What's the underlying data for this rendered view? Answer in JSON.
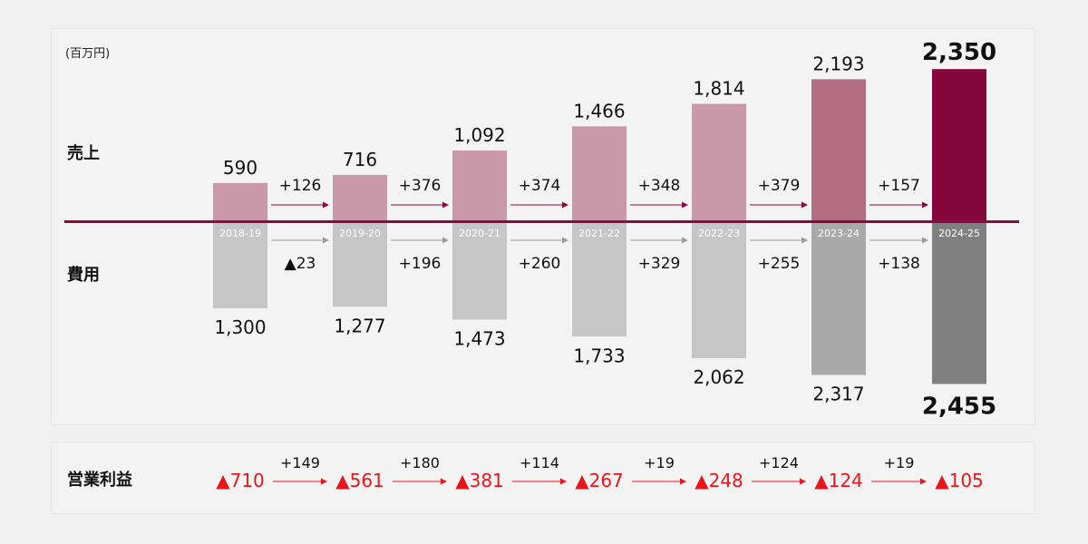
{
  "chart_data": {
    "type": "bar",
    "unit_label": "(百万円)",
    "categories": [
      "2018-19",
      "2019-20",
      "2020-21",
      "2021-22",
      "2022-23",
      "2023-24",
      "2024-25"
    ],
    "series": [
      {
        "name": "売上",
        "values": [
          590,
          716,
          1092,
          1466,
          1814,
          2193,
          2350
        ],
        "value_labels": [
          "590",
          "716",
          "1,092",
          "1,466",
          "1,814",
          "2,193",
          "2,350"
        ],
        "changes": [
          "+126",
          "+376",
          "+374",
          "+348",
          "+379",
          "+157"
        ],
        "colors": [
          "#c999aa",
          "#c999aa",
          "#c999aa",
          "#c999aa",
          "#c999aa",
          "#b06e82",
          "#83073a"
        ]
      },
      {
        "name": "費用",
        "values": [
          1300,
          1277,
          1473,
          1733,
          2062,
          2317,
          2455
        ],
        "value_labels": [
          "1,300",
          "1,277",
          "1,473",
          "1,733",
          "2,062",
          "2,317",
          "2,455"
        ],
        "changes": [
          "▲23",
          "+196",
          "+260",
          "+329",
          "+255",
          "+138"
        ],
        "colors": [
          "#c6c6c6",
          "#c6c6c6",
          "#c6c6c6",
          "#c6c6c6",
          "#c6c6c6",
          "#a9a9a9",
          "#808080"
        ]
      }
    ],
    "operating_profit": {
      "name": "営業利益",
      "values": [
        -710,
        -561,
        -381,
        -267,
        -248,
        -124,
        -105
      ],
      "value_labels": [
        "▲710",
        "▲561",
        "▲381",
        "▲267",
        "▲248",
        "▲124",
        "▲105"
      ],
      "changes": [
        "+149",
        "+180",
        "+114",
        "+19",
        "+124",
        "+19"
      ]
    },
    "colors": {
      "axis_line": "#8a0a3f",
      "revenue_arrow": "#8a0a3f",
      "cost_arrow": "#9a9a9a",
      "profit_text": "#e8161b"
    }
  }
}
